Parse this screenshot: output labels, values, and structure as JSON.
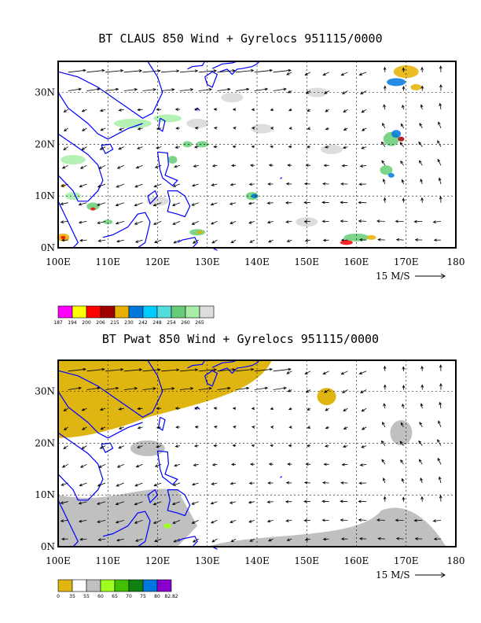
{
  "panels": [
    {
      "title": "BT CLAUS 850 Wind + Gyrelocs 951115/0000",
      "lon_ticks": [
        "100E",
        "110E",
        "120E",
        "130E",
        "140E",
        "150E",
        "160E",
        "170E",
        "180"
      ],
      "lat_ticks": [
        "0N",
        "10N",
        "20N",
        "30N"
      ],
      "vector_label": "15 M/S",
      "legend_labels": [
        "187",
        "194",
        "200",
        "206",
        "215",
        "230",
        "242",
        "248",
        "254",
        "260",
        "265"
      ],
      "legend_colors": [
        "#ff00ff",
        "#ffff00",
        "#ff0000",
        "#a00000",
        "#e6b000",
        "#0077dd",
        "#00ccff",
        "#55dddd",
        "#66cc77",
        "#a8eea8",
        "#dddddd"
      ]
    },
    {
      "title": "BT Pwat 850 Wind + Gyrelocs 951115/0000",
      "lon_ticks": [
        "100E",
        "110E",
        "120E",
        "130E",
        "140E",
        "150E",
        "160E",
        "170E",
        "180"
      ],
      "lat_ticks": [
        "0N",
        "10N",
        "20N",
        "30N"
      ],
      "vector_label": "15 M/S",
      "legend_labels": [
        "0",
        "35",
        "55",
        "60",
        "65",
        "70",
        "75",
        "80",
        "82.82"
      ],
      "legend_colors": [
        "#dfb511",
        "#ffffff",
        "#c0c0c0",
        "#a0ff20",
        "#40c000",
        "#108010",
        "#0077dd",
        "#8800cc"
      ]
    }
  ],
  "map": {
    "lon_range": [
      100,
      180
    ],
    "lat_range": [
      0,
      36
    ],
    "coastline_color": "#0000ff"
  }
}
